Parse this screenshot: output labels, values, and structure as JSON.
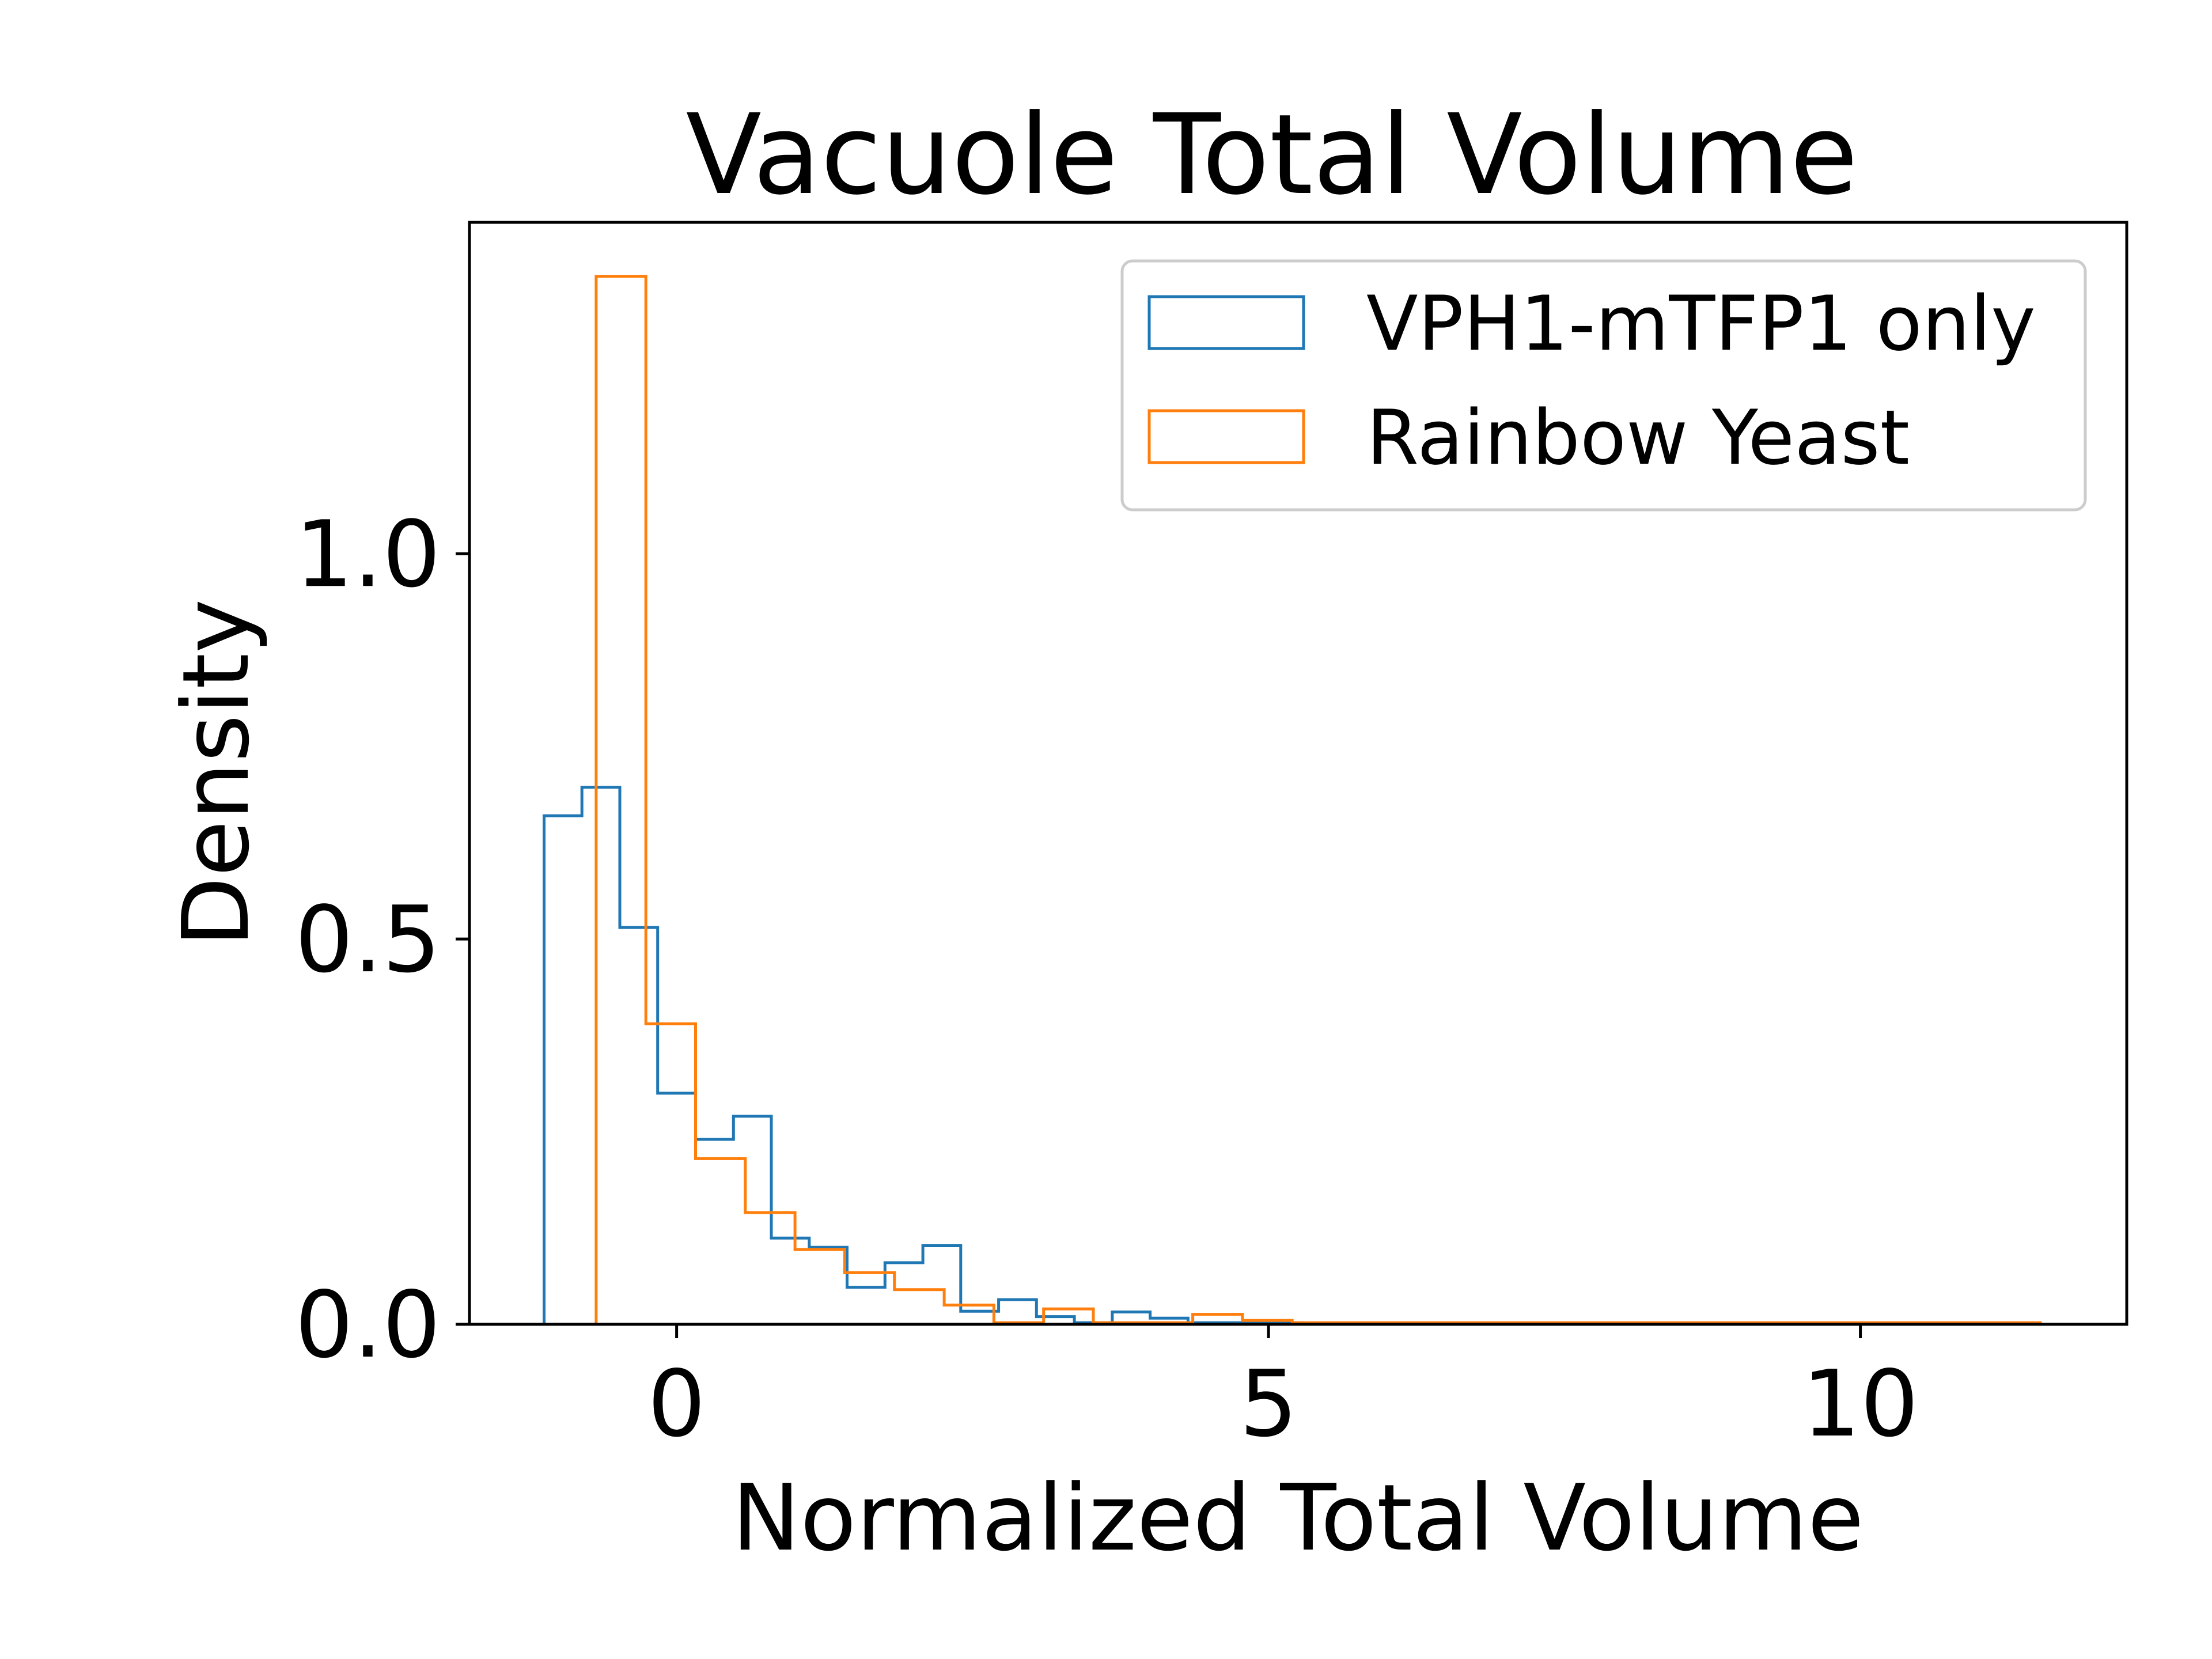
{
  "chart_data": {
    "type": "histogram",
    "title": "Vacuole Total Volume",
    "xlabel": "Normalized Total Volume",
    "ylabel": "Density",
    "xlim": [
      -1.75,
      12.25
    ],
    "ylim": [
      0,
      1.43
    ],
    "xticks": [
      0,
      5,
      10
    ],
    "xtick_labels": [
      "0",
      "5",
      "10"
    ],
    "yticks": [
      0.0,
      0.5,
      1.0
    ],
    "ytick_labels": [
      "0.0",
      "0.5",
      "1.0"
    ],
    "grid": false,
    "legend_position": "top-right",
    "series": [
      {
        "name": "VPH1-mTFP1 only",
        "color": "#1f77b4",
        "bin_edges": [
          -1.12,
          -0.8,
          -0.48,
          -0.16,
          0.16,
          0.48,
          0.8,
          1.12,
          1.44,
          1.76,
          2.08,
          2.4,
          2.72,
          3.04,
          3.36,
          3.68,
          4.0,
          4.32,
          4.64,
          4.96,
          5.28,
          11.52
        ],
        "values": [
          0.66,
          0.697,
          0.515,
          0.3,
          0.24,
          0.27,
          0.112,
          0.1,
          0.048,
          0.08,
          0.102,
          0.017,
          0.032,
          0.01,
          0.002,
          0.016,
          0.008,
          0.002,
          0.002,
          0.002,
          0.0
        ]
      },
      {
        "name": "Rainbow Yeast",
        "color": "#ff7f0e",
        "bin_edges": [
          -0.68,
          -0.26,
          0.16,
          0.58,
          1.0,
          1.42,
          1.84,
          2.26,
          2.68,
          3.1,
          3.52,
          3.94,
          4.36,
          4.78,
          5.2,
          11.52
        ],
        "values": [
          1.36,
          0.39,
          0.215,
          0.145,
          0.097,
          0.067,
          0.045,
          0.025,
          0.002,
          0.02,
          0.002,
          0.002,
          0.013,
          0.005,
          0.002
        ]
      }
    ]
  }
}
